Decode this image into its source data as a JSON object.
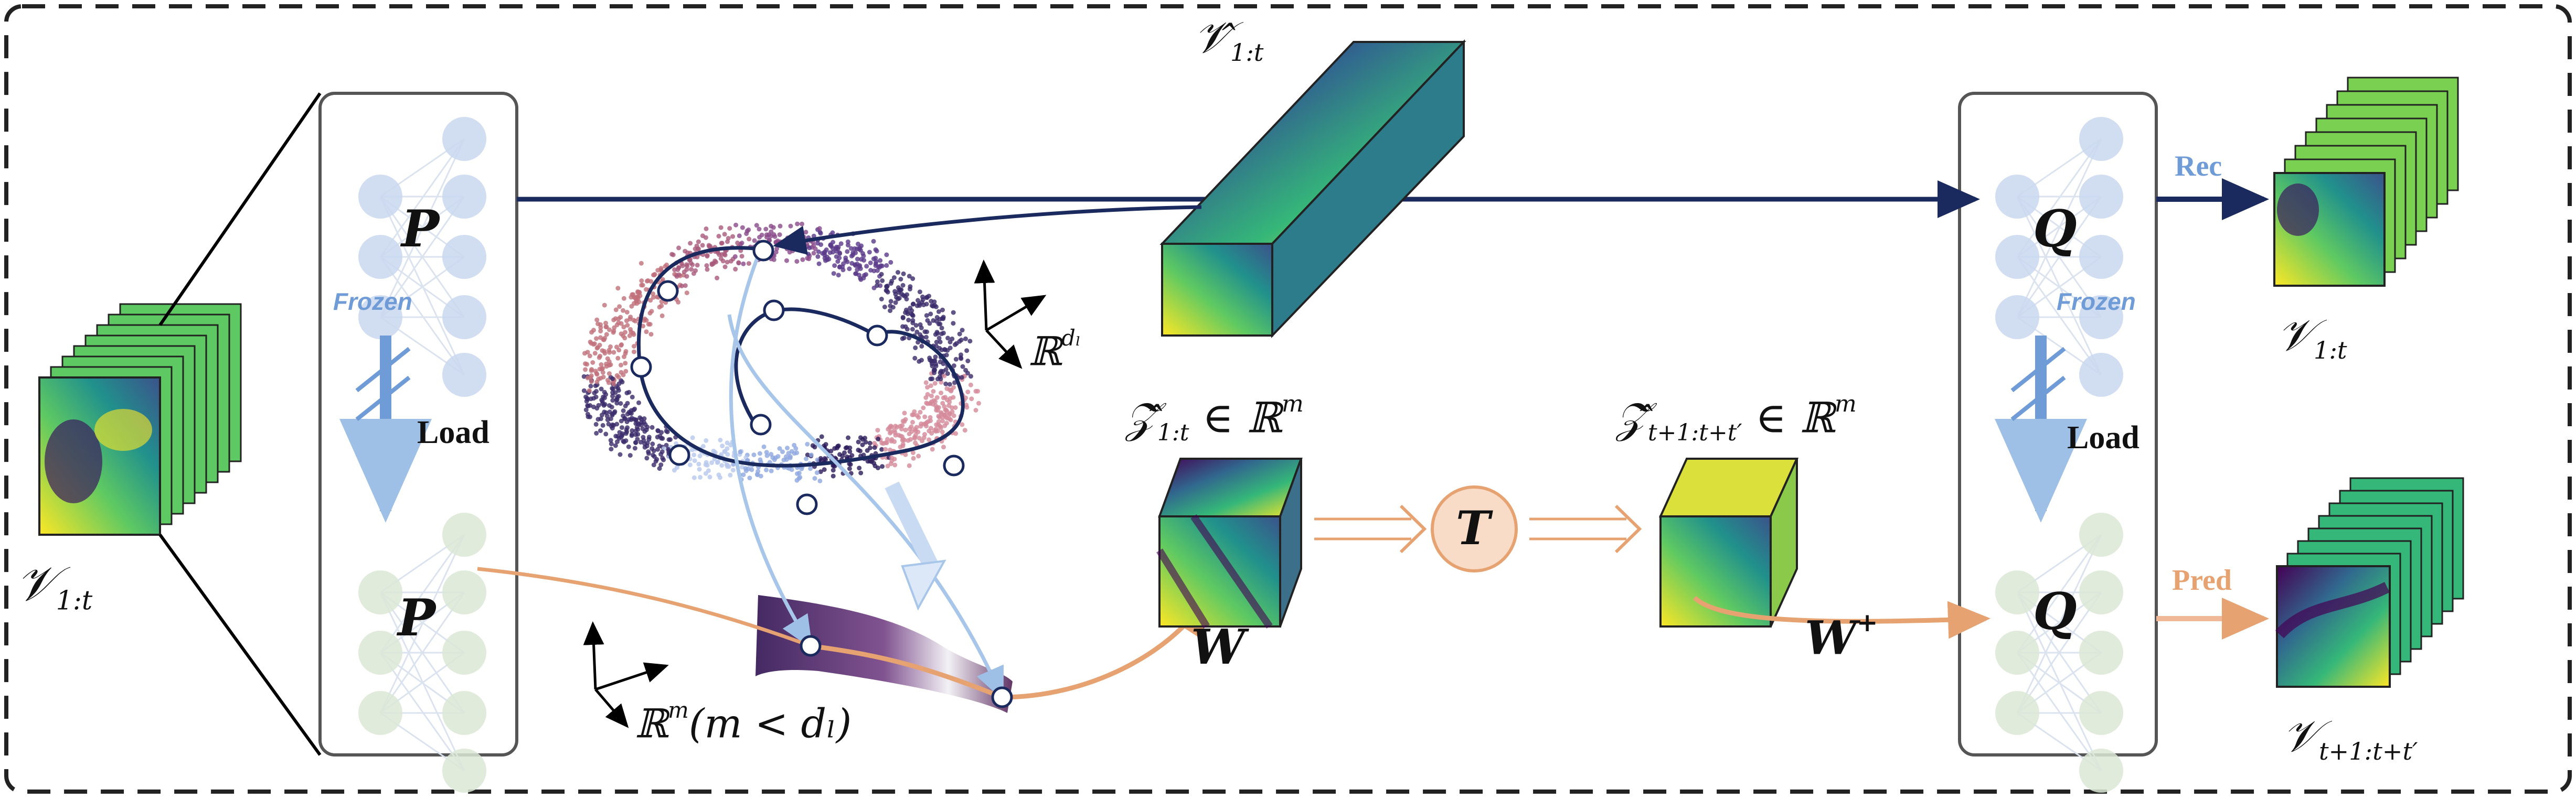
{
  "input_label": {
    "main": "𝒱",
    "sub": "1:t"
  },
  "encoder": {
    "name": "P",
    "frozen_label": "Frozen",
    "load_label": "Load"
  },
  "decoder": {
    "name": "Q",
    "frozen_label": "Frozen",
    "load_label": "Load"
  },
  "latent_top": {
    "main": "𝒱̂",
    "sub": "1:t"
  },
  "space_dl": {
    "text": "ℝ",
    "sup": "dₗ"
  },
  "space_m": {
    "text": "ℝ",
    "sup": "m",
    "cond": "(m < dₗ)"
  },
  "z_hat_1": {
    "main": "𝒵̂",
    "sub": "1:t",
    "tail": " ∈ ℝ",
    "sup": "m"
  },
  "z_hat_2": {
    "main": "𝒵̂",
    "sub": "t+1:t+t′",
    "tail": " ∈ ℝ",
    "sup": "m"
  },
  "w_label": "W",
  "w_plus": {
    "main": "W",
    "sup": "+"
  },
  "t_operator": "T",
  "rec_label": "Rec",
  "pred_label": "Pred",
  "output_rec": {
    "main": "𝒱",
    "sub": "1:t"
  },
  "output_pred": {
    "main": "𝒱",
    "sub": "t+1:t+t′"
  },
  "colors": {
    "navy": "#1b2a5e",
    "light_blue": "#6f9bd6",
    "orange": "#e6a271",
    "node_blue": "#c9d8f0",
    "node_green": "#dbe8d6",
    "t_fill": "#f9dcc8"
  }
}
